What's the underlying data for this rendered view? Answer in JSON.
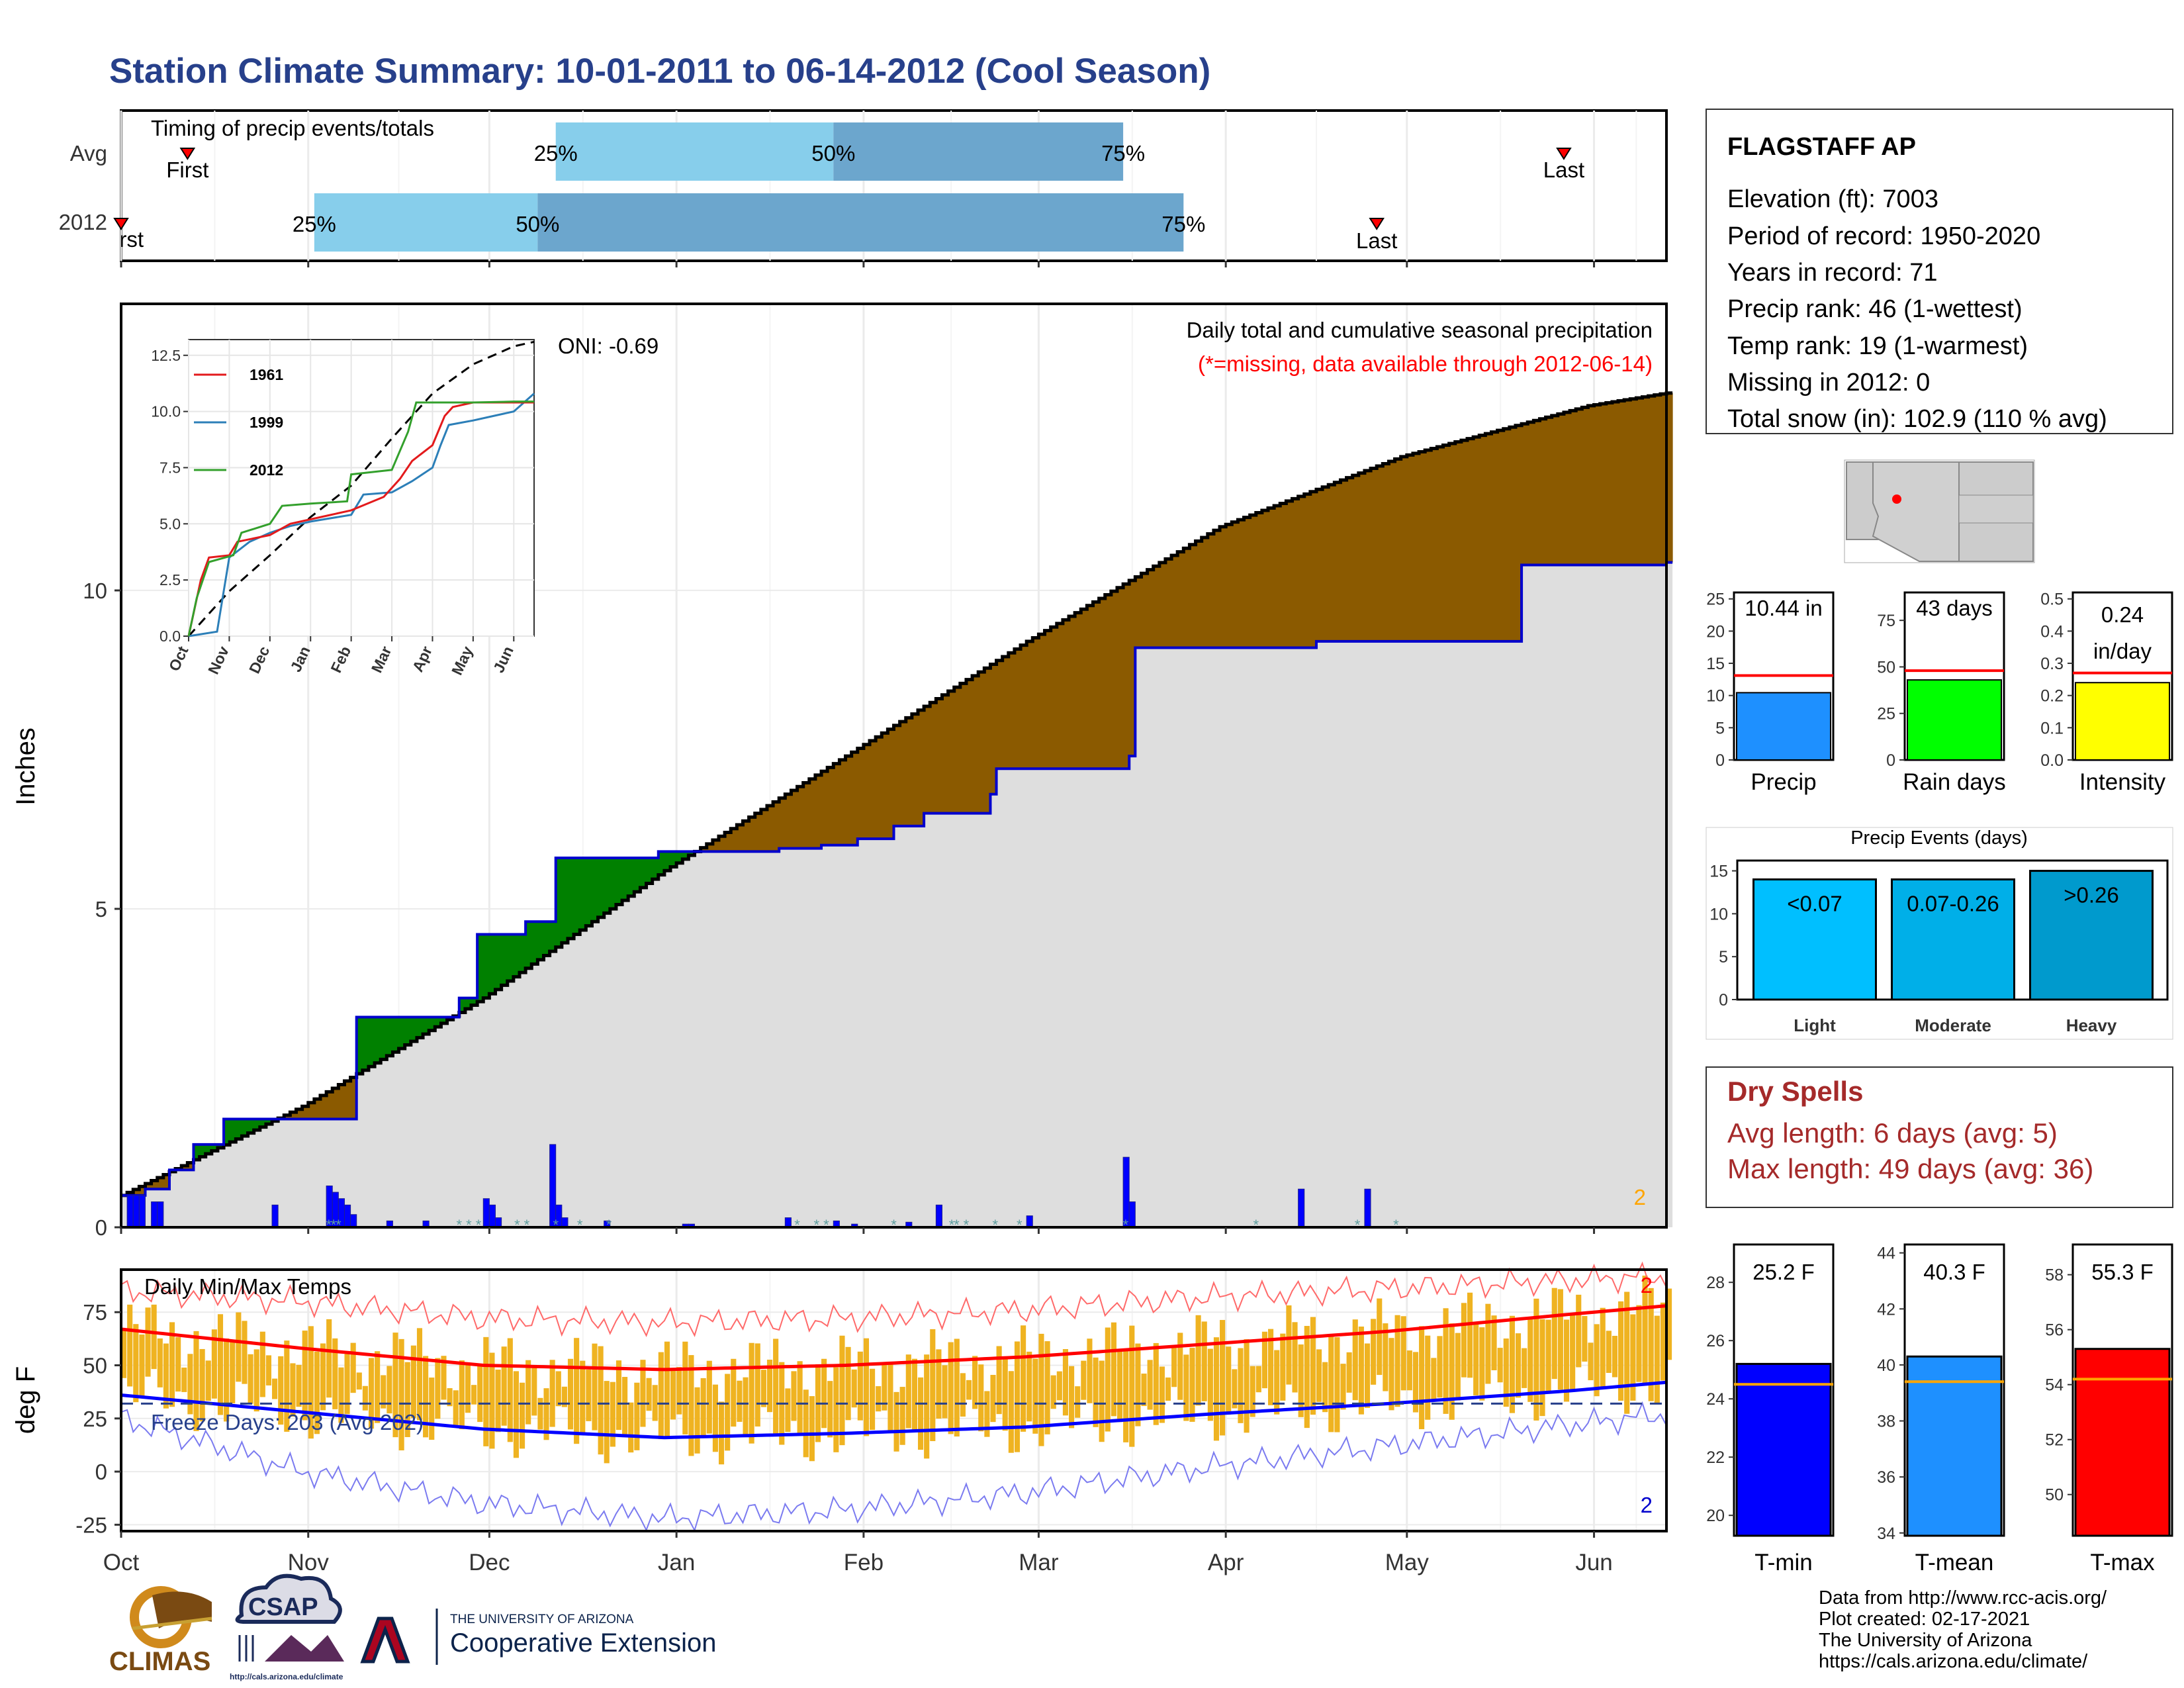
{
  "title": "Station Climate Summary: 10-01-2011 to 06-14-2012 (Cool Season)",
  "timing": {
    "label": "Timing of precip events/totals",
    "row_avg": "Avg",
    "row_year": "2012",
    "avg_first": "First",
    "avg_last": "Last",
    "year_first": "First",
    "year_last": "Last",
    "p25": "25%",
    "p50": "50%",
    "p75": "75%",
    "avg_dates": {
      "first": "Oct 12",
      "p25": "Dec 12",
      "p50": "Jan 27",
      "p75": "Mar 15",
      "last": "May 27"
    },
    "year_dates": {
      "first": "Oct 1",
      "p25": "Nov 2",
      "p50": "Dec 9",
      "p75": "Mar 25",
      "last": "Apr 26"
    }
  },
  "precip_panel": {
    "ylabel": "Inches",
    "header": "Daily total and cumulative seasonal precipitation",
    "missing_note": "(*=missing, data available through 2012-06-14)",
    "oni": "ONI: -0.69",
    "corner_mark": "2",
    "chart_data": {
      "type": "area",
      "x_unit": "day of season from Oct 1 2011",
      "ylim": [
        0,
        14.5
      ],
      "yticks": [
        0,
        5,
        10
      ],
      "avg_cumulative": {
        "x": [
          0,
          30,
          60,
          90,
          120,
          150,
          182,
          212,
          243,
          256
        ],
        "y": [
          0.5,
          1.9,
          3.6,
          5.6,
          7.4,
          9.2,
          11.0,
          12.1,
          12.9,
          13.1
        ]
      },
      "year_cumulative": {
        "x": [
          0,
          4,
          8,
          12,
          17,
          36,
          39,
          56,
          59,
          67,
          72,
          89,
          90,
          99,
          100,
          109,
          116,
          122,
          128,
          133,
          144,
          145,
          167,
          168,
          198,
          232,
          256
        ],
        "y": [
          0.5,
          0.6,
          0.9,
          1.3,
          1.7,
          1.7,
          3.3,
          3.6,
          4.6,
          4.8,
          5.8,
          5.9,
          5.9,
          5.9,
          5.9,
          5.95,
          6.0,
          6.1,
          6.3,
          6.5,
          6.8,
          7.2,
          7.4,
          9.1,
          9.2,
          10.4,
          10.44
        ]
      },
      "daily_bars": {
        "x": [
          1,
          2,
          3,
          5,
          6,
          25,
          34,
          35,
          36,
          37,
          38,
          44,
          50,
          60,
          61,
          62,
          71,
          72,
          73,
          80,
          93,
          94,
          110,
          118,
          121,
          130,
          135,
          150,
          166,
          167,
          195,
          206
        ],
        "y": [
          0.5,
          0.5,
          0.5,
          0.4,
          0.4,
          0.35,
          0.65,
          0.55,
          0.45,
          0.35,
          0.2,
          0.1,
          0.1,
          0.45,
          0.35,
          0.15,
          1.3,
          0.35,
          0.15,
          0.1,
          0.05,
          0.05,
          0.15,
          0.1,
          0.05,
          0.08,
          0.35,
          0.18,
          1.1,
          0.4,
          0.6,
          0.6
        ]
      }
    },
    "inset": {
      "months": [
        "Oct",
        "Nov",
        "Dec",
        "Jan",
        "Feb",
        "Mar",
        "Apr",
        "May",
        "Jun"
      ],
      "yticks": [
        "0.0",
        "2.5",
        "5.0",
        "7.5",
        "10.0",
        "12.5"
      ],
      "legend": [
        {
          "name": "1961",
          "color": "#e31a1c"
        },
        {
          "name": "1999",
          "color": "#2c7fb8"
        },
        {
          "name": "2012",
          "color": "#33a02c"
        }
      ],
      "series": {
        "mean": {
          "x": [
            0,
            1,
            2,
            3,
            4,
            5,
            6,
            7,
            8,
            8.5
          ],
          "y": [
            0,
            2.0,
            3.6,
            5.3,
            6.7,
            8.8,
            10.8,
            12.1,
            12.9,
            13.1
          ]
        },
        "1961": {
          "x": [
            0,
            0.3,
            0.5,
            1,
            1.2,
            2,
            2.5,
            3,
            3.5,
            4,
            4.8,
            5.2,
            5.5,
            6,
            6.3,
            6.5,
            7,
            8,
            8.5
          ],
          "y": [
            0,
            2.5,
            3.5,
            3.6,
            4.2,
            4.5,
            5.0,
            5.2,
            5.4,
            5.6,
            6.2,
            7.0,
            7.8,
            8.5,
            9.8,
            10.2,
            10.4,
            10.4,
            10.4
          ]
        },
        "1999": {
          "x": [
            0,
            0.7,
            1,
            1.5,
            2,
            2.5,
            3,
            4,
            4.3,
            5,
            5.5,
            6,
            6.2,
            6.4,
            7,
            7.5,
            8,
            8.5
          ],
          "y": [
            0,
            0.2,
            3.5,
            4.2,
            4.6,
            4.9,
            5.1,
            5.4,
            6.3,
            6.4,
            6.9,
            7.5,
            8.5,
            9.4,
            9.6,
            9.8,
            10.0,
            10.8
          ]
        },
        "2012": {
          "x": [
            0,
            0.2,
            0.5,
            1.1,
            1.3,
            2,
            2.3,
            3,
            3.9,
            4,
            5,
            5.4,
            5.6,
            6.5,
            7,
            8,
            8.5
          ],
          "y": [
            0,
            1.7,
            3.3,
            3.6,
            4.6,
            5.0,
            5.8,
            5.9,
            6.0,
            7.2,
            7.4,
            9.1,
            10.4,
            10.4,
            10.4,
            10.44,
            10.44
          ]
        }
      }
    }
  },
  "temp_panel": {
    "ylabel": "deg F",
    "label": "Daily Min/Max Temps",
    "freeze": "Freeze Days: 203 (Avg 202)",
    "corner_top": "2",
    "corner_bottom": "2",
    "chart_data": {
      "type": "bar",
      "ylim": [
        -28,
        95
      ],
      "yticks": [
        -25,
        0,
        25,
        50,
        75
      ],
      "freeze_line": 32,
      "avg_max": {
        "x": [
          0,
          30,
          60,
          90,
          120,
          150,
          180,
          210,
          240,
          256
        ],
        "y": [
          67,
          58,
          50,
          48,
          50,
          54,
          60,
          66,
          74,
          78
        ]
      },
      "avg_min": {
        "x": [
          0,
          30,
          60,
          90,
          120,
          150,
          180,
          210,
          240,
          256
        ],
        "y": [
          36,
          28,
          20,
          16,
          18,
          21,
          27,
          32,
          38,
          42
        ]
      },
      "record_max": {
        "x": [
          0,
          30,
          60,
          90,
          120,
          150,
          180,
          210,
          240,
          256
        ],
        "y": [
          85,
          80,
          72,
          70,
          72,
          76,
          82,
          86,
          90,
          92
        ]
      },
      "record_min": {
        "x": [
          0,
          30,
          60,
          90,
          120,
          150,
          180,
          210,
          240,
          256
        ],
        "y": [
          25,
          0,
          -15,
          -22,
          -18,
          -10,
          2,
          12,
          22,
          27
        ]
      }
    }
  },
  "x_months": [
    "Oct",
    "Nov",
    "Dec",
    "Jan",
    "Feb",
    "Mar",
    "Apr",
    "May",
    "Jun"
  ],
  "info": {
    "station": "FLAGSTAFF AP",
    "elevation": "Elevation (ft): 7003",
    "period": "Period of record: 1950-2020",
    "years": "Years in record: 71",
    "precip_rank": "Precip rank: 46 (1-wettest)",
    "temp_rank": "Temp rank: 19 (1-warmest)",
    "missing": "Missing in 2012: 0",
    "snow": "Total snow (in): 102.9 (110 % avg)"
  },
  "mini_bars": {
    "precip": {
      "label": "Precip",
      "value_text": "10.44 in",
      "value": 10.44,
      "avg": 13.1,
      "ymax": 26,
      "ticks": [
        "0",
        "5",
        "10",
        "15",
        "20",
        "25"
      ],
      "color": "#1e90ff"
    },
    "rain_days": {
      "label": "Rain days",
      "value_text": "43 days",
      "value": 43,
      "avg": 48,
      "ymax": 90,
      "ticks": [
        "0",
        "25",
        "50",
        "75"
      ],
      "color": "#00ff00"
    },
    "intensity": {
      "label": "Intensity",
      "value_text1": "0.24",
      "value_text2": "in/day",
      "value": 0.24,
      "avg": 0.27,
      "ymax": 0.52,
      "ticks": [
        "0.0",
        "0.1",
        "0.2",
        "0.3",
        "0.4",
        "0.5"
      ],
      "color": "#ffff00"
    }
  },
  "events": {
    "title": "Precip Events (days)",
    "ticks": [
      "0",
      "5",
      "10",
      "15"
    ],
    "bars": [
      {
        "label": "Light",
        "text": "<0.07",
        "value": 14,
        "color": "#00bfff"
      },
      {
        "label": "Moderate",
        "text": "0.07-0.26",
        "value": 14,
        "color": "#00afe8"
      },
      {
        "label": "Heavy",
        "text": ">0.26",
        "value": 15,
        "color": "#009acd"
      }
    ]
  },
  "dry_spells": {
    "title": "Dry Spells",
    "avg": "Avg length: 6 days (avg: 5)",
    "max": "Max length: 49 days (avg: 36)"
  },
  "temp_bars": {
    "tmin": {
      "label": "T-min",
      "value_text": "25.2 F",
      "value": 25.2,
      "avg": 24.5,
      "ylim": [
        19.3,
        29.3
      ],
      "ticks": [
        "20",
        "22",
        "24",
        "26",
        "28"
      ],
      "color": "#0000ff"
    },
    "tmean": {
      "label": "T-mean",
      "value_text": "40.3 F",
      "value": 40.3,
      "avg": 39.4,
      "ylim": [
        33.9,
        44.3
      ],
      "ticks": [
        "34",
        "36",
        "38",
        "40",
        "42",
        "44"
      ],
      "color": "#1e90ff"
    },
    "tmax": {
      "label": "T-max",
      "value_text": "55.3 F",
      "value": 55.3,
      "avg": 54.2,
      "ylim": [
        48.5,
        59.1
      ],
      "ticks": [
        "50",
        "52",
        "54",
        "56",
        "58"
      ],
      "color": "#ff0000"
    }
  },
  "credits": {
    "line1": "Data from http://www.rcc-acis.org/",
    "line2": "Plot created: 02-17-2021",
    "line3": "The University of Arizona",
    "line4": "https://cals.arizona.edu/climate/"
  },
  "logos": {
    "climas": "CLIMAS",
    "csap": "CSAP",
    "csap_url": "http://cals.arizona.edu/climate",
    "ua_small": "THE UNIVERSITY OF ARIZONA",
    "ua_big": "Cooperative Extension"
  }
}
